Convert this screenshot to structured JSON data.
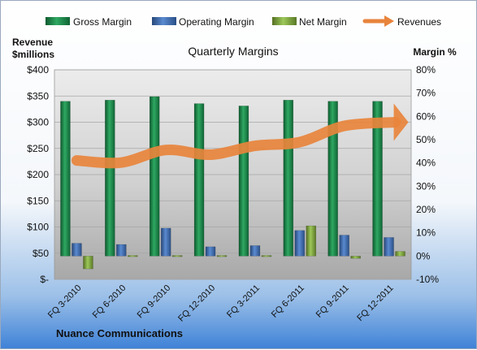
{
  "chart_data": {
    "type": "bar",
    "title": "Quarterly Margins",
    "footer": "Nuance Communications",
    "left_axis": {
      "label_line1": "Revenue",
      "label_line2": "$millions",
      "ticks": [
        "$400",
        "$350",
        "$300",
        "$250",
        "$200",
        "$150",
        "$100",
        "$50",
        "$-"
      ],
      "range": [
        0,
        400
      ]
    },
    "right_axis": {
      "label": "Margin %",
      "ticks": [
        "80%",
        "70%",
        "60%",
        "50%",
        "40%",
        "30%",
        "20%",
        "10%",
        "0%",
        "-10%"
      ],
      "range": [
        -10,
        80
      ]
    },
    "categories": [
      "FQ 3-2010",
      "FQ 6-2010",
      "FQ 9-2010",
      "FQ 12-2010",
      "FQ 3-2011",
      "FQ 6-2011",
      "FQ 9-2011",
      "FQ 12-2011"
    ],
    "series": [
      {
        "name": "Gross Margin",
        "axis": "right",
        "color": "#1f8a4c",
        "values": [
          66.5,
          67,
          68.5,
          65.5,
          64.5,
          67,
          66.5,
          66.5
        ]
      },
      {
        "name": "Operating Margin",
        "axis": "right",
        "color": "#3f6fb4",
        "values": [
          5.5,
          5,
          12,
          4,
          4.5,
          11,
          9,
          8
        ]
      },
      {
        "name": "Net Margin",
        "axis": "right",
        "color": "#8db84a",
        "values": [
          -5.5,
          0.5,
          0.5,
          0,
          0,
          13,
          -1,
          2
        ]
      },
      {
        "name": "Revenues",
        "axis": "left",
        "color": "#e8843c",
        "type": "line",
        "values": [
          227,
          223,
          247,
          238,
          255,
          262,
          293,
          300
        ]
      }
    ],
    "grid": true,
    "legend_position": "top"
  }
}
